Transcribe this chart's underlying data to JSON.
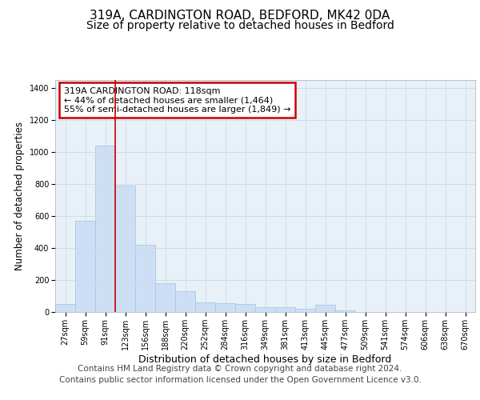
{
  "title_line1": "319A, CARDINGTON ROAD, BEDFORD, MK42 0DA",
  "title_line2": "Size of property relative to detached houses in Bedford",
  "xlabel": "Distribution of detached houses by size in Bedford",
  "ylabel": "Number of detached properties",
  "categories": [
    "27sqm",
    "59sqm",
    "91sqm",
    "123sqm",
    "156sqm",
    "188sqm",
    "220sqm",
    "252sqm",
    "284sqm",
    "316sqm",
    "349sqm",
    "381sqm",
    "413sqm",
    "445sqm",
    "477sqm",
    "509sqm",
    "541sqm",
    "574sqm",
    "606sqm",
    "638sqm",
    "670sqm"
  ],
  "values": [
    48,
    570,
    1040,
    790,
    420,
    180,
    130,
    62,
    55,
    48,
    30,
    28,
    20,
    45,
    10,
    0,
    0,
    0,
    0,
    0,
    0
  ],
  "bar_color": "#ccdff5",
  "bar_edge_color": "#a8c8e8",
  "vline_color": "#cc0000",
  "vline_position": 2.5,
  "annotation_text": "319A CARDINGTON ROAD: 118sqm\n← 44% of detached houses are smaller (1,464)\n55% of semi-detached houses are larger (1,849) →",
  "annotation_box_facecolor": "white",
  "annotation_box_edgecolor": "#cc0000",
  "ylim": [
    0,
    1450
  ],
  "yticks": [
    0,
    200,
    400,
    600,
    800,
    1000,
    1200,
    1400
  ],
  "grid_color": "#d0d8e8",
  "fig_background": "#ffffff",
  "axes_background": "#e8f0f8",
  "title_fontsize": 11,
  "subtitle_fontsize": 10,
  "xlabel_fontsize": 9,
  "ylabel_fontsize": 8.5,
  "tick_fontsize": 7,
  "annot_fontsize": 8,
  "footer_fontsize": 7.5,
  "footer_line1": "Contains HM Land Registry data © Crown copyright and database right 2024.",
  "footer_line2": "Contains public sector information licensed under the Open Government Licence v3.0."
}
